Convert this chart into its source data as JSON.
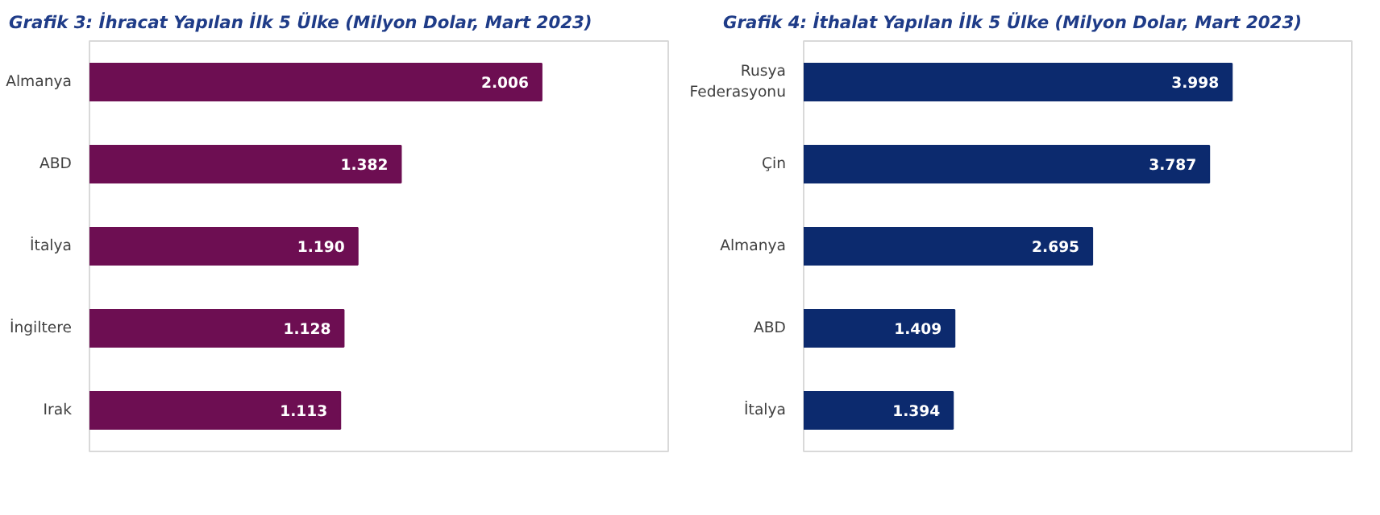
{
  "chart_data": [
    {
      "type": "bar",
      "orientation": "horizontal",
      "title": "Grafik 3:  İhracat Yapılan İlk 5 Ülke (Milyon Dolar, Mart 2023)",
      "categories": [
        "Almanya",
        "ABD",
        "İtalya",
        "İngiltere",
        "Irak"
      ],
      "values": [
        2006,
        1382,
        1190,
        1128,
        1113
      ],
      "value_labels": [
        "2.006",
        "1.382",
        "1.190",
        "1.128",
        "1.113"
      ],
      "color": "#6d0e52",
      "grid": false
    },
    {
      "type": "bar",
      "orientation": "horizontal",
      "title": "Grafik 4:  İthalat Yapılan İlk 5 Ülke (Milyon Dolar, Mart 2023)",
      "categories": [
        "Rusya\nFederasyonu",
        "Çin",
        "Almanya",
        "ABD",
        "İtalya"
      ],
      "values": [
        3998,
        3787,
        2695,
        1409,
        1394
      ],
      "value_labels": [
        "3.998",
        "3.787",
        "2.695",
        "1.409",
        "1.394"
      ],
      "color": "#0c2a6e",
      "grid": false
    }
  ]
}
